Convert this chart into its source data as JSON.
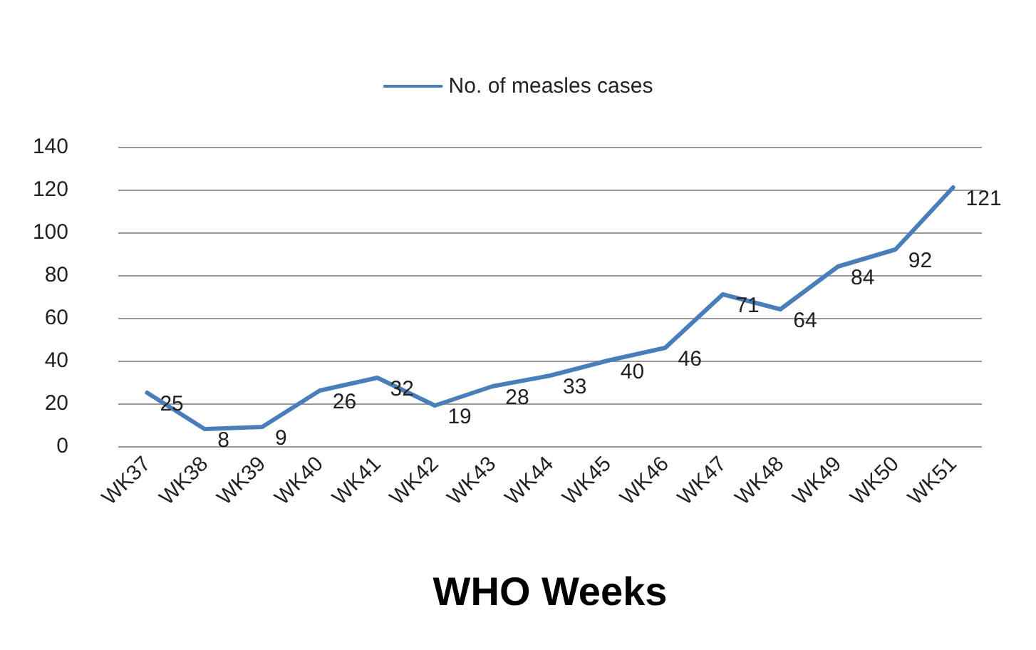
{
  "chart_data": {
    "type": "line",
    "xlabel": "WHO Weeks",
    "categories": [
      "WK37",
      "WK38",
      "WK39",
      "WK40",
      "WK41",
      "WK42",
      "WK43",
      "WK44",
      "WK45",
      "WK46",
      "WK47",
      "WK48",
      "WK49",
      "WK50",
      "WK51"
    ],
    "series": [
      {
        "name": "No. of measles cases",
        "color": "#4a7ebb",
        "values": [
          25,
          8,
          9,
          26,
          32,
          19,
          28,
          33,
          40,
          46,
          71,
          64,
          84,
          92,
          121
        ]
      }
    ],
    "ylim": [
      0,
      140
    ],
    "yticks": [
      0,
      20,
      40,
      60,
      80,
      100,
      120,
      140
    ],
    "grid": "y",
    "legend": "top",
    "marker": "none",
    "line_style": "solid",
    "data_labels": true
  }
}
